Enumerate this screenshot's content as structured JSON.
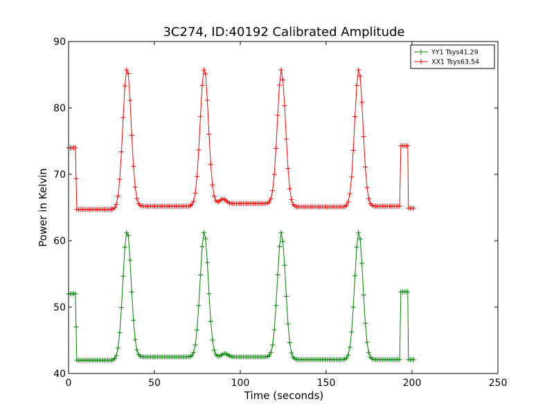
{
  "chart_data": {
    "type": "line",
    "title": "3C274, ID:40192 Calibrated Amplitude",
    "xlabel": "Time (seconds)",
    "ylabel": "Power in Kelvin",
    "xlim": [
      0,
      250
    ],
    "ylim": [
      40,
      90
    ],
    "xticks": [
      0,
      50,
      100,
      150,
      200,
      250
    ],
    "yticks": [
      40,
      50,
      60,
      70,
      80,
      90
    ],
    "grid": false,
    "legend_position": "top-right",
    "peaks": [
      34,
      79,
      124,
      169
    ],
    "series": [
      {
        "name": "YY1 Tsys41.29",
        "color": "#008000",
        "marker": "+",
        "off_level_start": 52.0,
        "baselines": [
          42.0,
          42.5,
          42.5,
          42.1,
          42.1
        ],
        "bump_at": 91,
        "bump_height": 0.5,
        "peak_level": 61.3,
        "off_level_end": 52.3,
        "tail_level": 42.1
      },
      {
        "name": "XX1 Tsys63.54",
        "color": "#ff0000",
        "marker": "+",
        "off_level_start": 74.0,
        "baselines": [
          64.7,
          65.2,
          65.6,
          65.1,
          65.2
        ],
        "bump_at": 90,
        "bump_height": 0.7,
        "peak_level": 85.8,
        "off_level_end": 74.3,
        "tail_level": 64.9
      }
    ]
  }
}
